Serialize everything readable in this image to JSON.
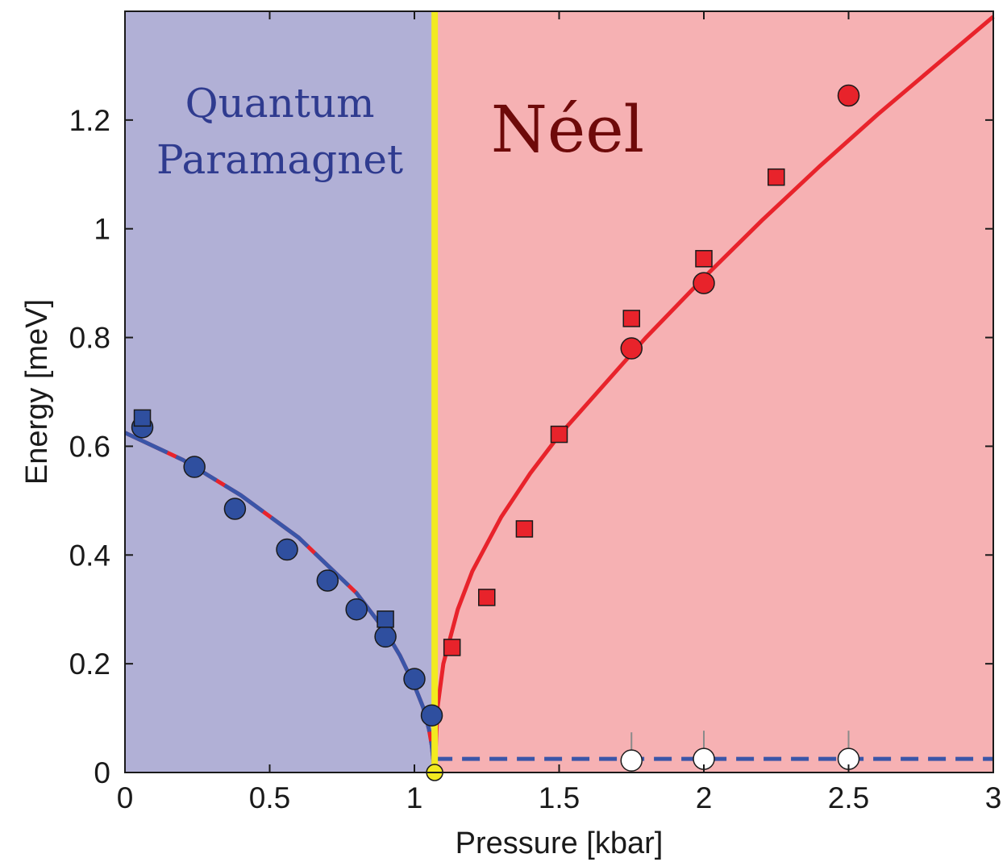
{
  "chart_data": {
    "type": "scatter",
    "xlabel": "Pressure [kbar]",
    "ylabel": "Energy [meV]",
    "xlim": [
      0,
      3
    ],
    "ylim": [
      0,
      1.4
    ],
    "xticks": [
      0,
      0.5,
      1,
      1.5,
      2,
      2.5,
      3
    ],
    "xtick_labels": [
      "0",
      "0.5",
      "1",
      "1.5",
      "2",
      "2.5",
      "3"
    ],
    "yticks": [
      0,
      0.2,
      0.4,
      0.6,
      0.8,
      1.0,
      1.2
    ],
    "ytick_labels": [
      "0",
      "0.2",
      "0.4",
      "0.6",
      "0.8",
      "1",
      "1.2"
    ],
    "grid": false,
    "critical_pressure": 1.07,
    "regions": [
      {
        "label_lines": [
          "Quantum",
          "Paramagnet"
        ],
        "x_range": [
          0,
          1.07
        ],
        "color": "#b1b0d6",
        "text_color": "#2f3b8f"
      },
      {
        "label_lines": [
          "Néel"
        ],
        "x_range": [
          1.07,
          3
        ],
        "color": "#f6b1b3",
        "text_color": "#6e0a0a"
      }
    ],
    "series": [
      {
        "marker": "circle",
        "color": "#2f4f9f",
        "x": [
          0.06,
          0.24,
          0.38,
          0.56,
          0.7,
          0.8,
          0.9,
          1.0,
          1.06
        ],
        "y": [
          0.635,
          0.562,
          0.485,
          0.41,
          0.353,
          0.3,
          0.25,
          0.172,
          0.105
        ]
      },
      {
        "marker": "square",
        "color": "#2f4f9f",
        "x": [
          0.06,
          0.9
        ],
        "y": [
          0.652,
          0.282
        ]
      },
      {
        "marker": "square",
        "color": "#e8232b",
        "x": [
          1.13,
          1.25,
          1.38,
          1.5,
          1.75,
          2.0,
          2.25
        ],
        "y": [
          0.23,
          0.322,
          0.448,
          0.622,
          0.835,
          0.945,
          1.095
        ]
      },
      {
        "marker": "circle",
        "color": "#e8232b",
        "x": [
          1.75,
          2.0,
          2.5
        ],
        "y": [
          0.78,
          0.9,
          1.245
        ]
      },
      {
        "marker": "circle",
        "color": "#ffffff",
        "x": [
          1.75,
          2.0,
          2.5
        ],
        "y": [
          0.022,
          0.025,
          0.025
        ]
      },
      {
        "marker": "circle",
        "color": "#f2ea20",
        "x": [
          1.07
        ],
        "y": [
          0.0
        ]
      }
    ],
    "curves": [
      {
        "style": "red-blue-dashed",
        "x": [
          0,
          0.2,
          0.4,
          0.6,
          0.8,
          0.9,
          0.95,
          1.0,
          1.03,
          1.05,
          1.06,
          1.07
        ],
        "y": [
          0.625,
          0.575,
          0.51,
          0.432,
          0.33,
          0.26,
          0.215,
          0.16,
          0.12,
          0.08,
          0.05,
          0.0
        ]
      },
      {
        "style": "red-solid",
        "x": [
          1.07,
          1.08,
          1.1,
          1.15,
          1.2,
          1.3,
          1.4,
          1.5,
          1.6,
          1.8,
          2.0,
          2.2,
          2.4,
          2.6,
          2.8,
          3.0
        ],
        "y": [
          0.0,
          0.12,
          0.2,
          0.3,
          0.37,
          0.47,
          0.55,
          0.62,
          0.68,
          0.8,
          0.91,
          1.015,
          1.115,
          1.21,
          1.3,
          1.39
        ]
      },
      {
        "style": "blue-dashed",
        "x": [
          1.07,
          3.0
        ],
        "y": [
          0.025,
          0.025
        ]
      }
    ]
  }
}
